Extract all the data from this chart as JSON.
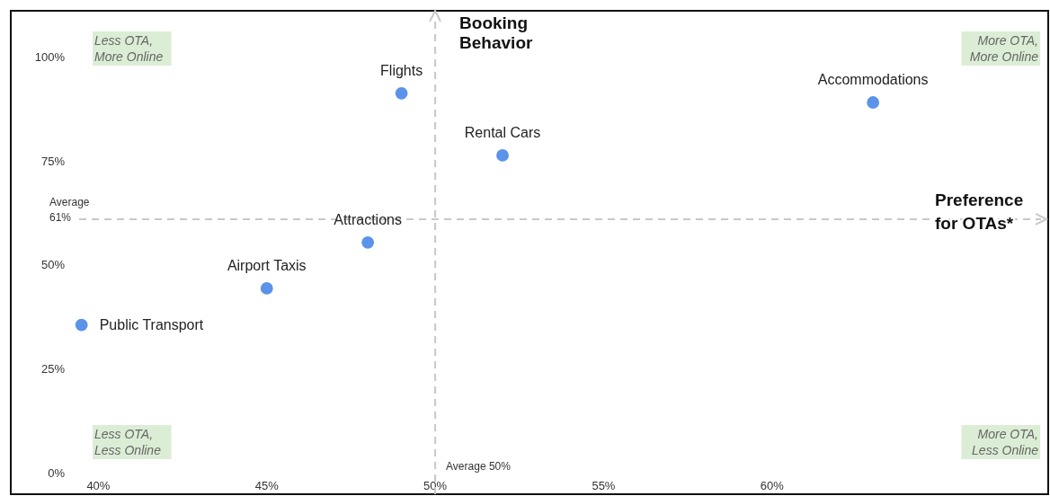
{
  "chart_data": {
    "type": "scatter",
    "xlabel": "Preference for OTAs*",
    "ylabel": "Booking Behavior",
    "x": [
      39.5,
      45,
      48,
      49,
      52,
      63
    ],
    "values": [
      35.6,
      44.4,
      55.4,
      91.2,
      76.3,
      89
    ],
    "color": "#5b93ea",
    "marker": "circle",
    "xlim": [
      37.4,
      68.2
    ],
    "ylim": [
      -5,
      111
    ],
    "xticks": [
      {
        "value": 40,
        "label": "40%"
      },
      {
        "value": 45,
        "label": "45%"
      },
      {
        "value": 50,
        "label": "50%"
      },
      {
        "value": 55,
        "label": "55%"
      },
      {
        "value": 60,
        "label": "60%"
      }
    ],
    "yticks": [
      {
        "value": 0,
        "label": "0%"
      },
      {
        "value": 25,
        "label": "25%"
      },
      {
        "value": 50,
        "label": "50%"
      },
      {
        "value": 75,
        "label": "75%"
      },
      {
        "value": 100,
        "label": "100%"
      }
    ],
    "grid": false,
    "ref_lines": [
      {
        "axis": "x",
        "value": 50,
        "label": "Average 50%",
        "color": "#c8c8c8",
        "line_style": "dashed"
      },
      {
        "axis": "y",
        "value": 61,
        "label": "Average 61%",
        "color": "#c8c8c8",
        "line_style": "dashed"
      }
    ],
    "annotations": [
      {
        "text": "Public Transport",
        "x": 39.5,
        "y": 35.6
      },
      {
        "text": "Airport Taxis",
        "x": 45,
        "y": 44.4
      },
      {
        "text": "Attractions",
        "x": 48,
        "y": 55.4
      },
      {
        "text": "Flights",
        "x": 49,
        "y": 91.2
      },
      {
        "text": "Rental Cars",
        "x": 52,
        "y": 76.3
      },
      {
        "text": "Accommodations",
        "x": 63,
        "y": 89
      },
      "Less OTA, More Online",
      "More OTA, More Online",
      "Less OTA, Less Online",
      "More OTA, Less Online"
    ]
  }
}
